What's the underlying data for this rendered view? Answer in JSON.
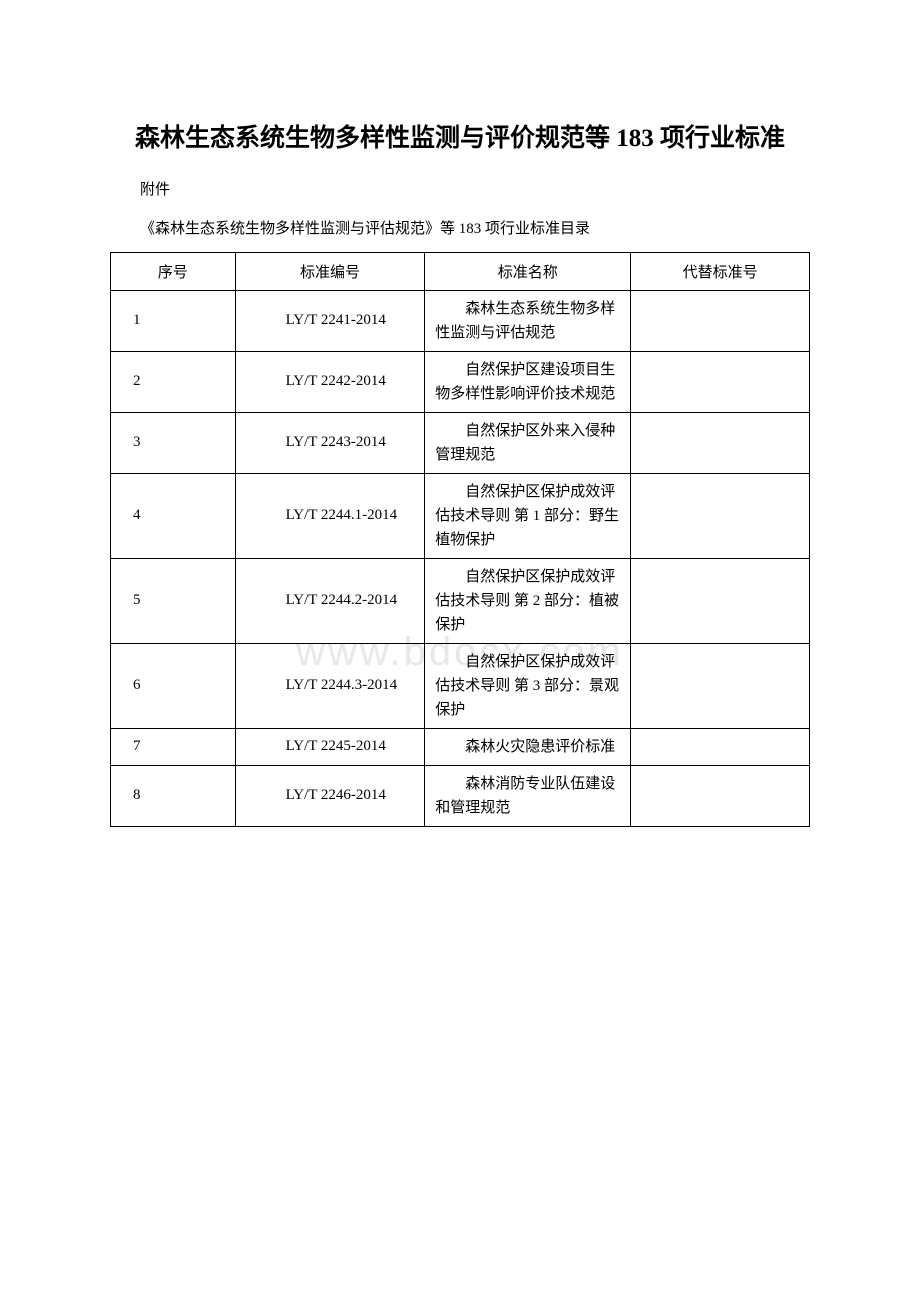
{
  "title": "森林生态系统生物多样性监测与评价规范等 183 项行业标准",
  "attachment": "附件",
  "subtitle": "《森林生态系统生物多样性监测与评估规范》等 183 项行业标准目录",
  "watermark": "www.bdocx.com",
  "table": {
    "headers": {
      "seq": "序号",
      "code": "标准编号",
      "name": "标准名称",
      "replace": "代替标准号"
    },
    "rows": [
      {
        "seq": "1",
        "code": "LY/T 2241-2014",
        "name": "森林生态系统生物多样性监测与评估规范",
        "replace": ""
      },
      {
        "seq": "2",
        "code": "LY/T 2242-2014",
        "name": "自然保护区建设项目生物多样性影响评价技术规范",
        "replace": ""
      },
      {
        "seq": "3",
        "code": "LY/T 2243-2014",
        "name": "自然保护区外来入侵种管理规范",
        "replace": ""
      },
      {
        "seq": "4",
        "code": "LY/T 2244.1-2014",
        "name": "自然保护区保护成效评估技术导则 第 1 部分：野生植物保护",
        "replace": ""
      },
      {
        "seq": "5",
        "code": "LY/T 2244.2-2014",
        "name": "自然保护区保护成效评估技术导则 第 2 部分：植被保护",
        "replace": ""
      },
      {
        "seq": "6",
        "code": "LY/T 2244.3-2014",
        "name": "自然保护区保护成效评估技术导则 第 3 部分：景观保护",
        "replace": ""
      },
      {
        "seq": "7",
        "code": "LY/T 2245-2014",
        "name": "森林火灾隐患评价标准",
        "replace": ""
      },
      {
        "seq": "8",
        "code": "LY/T 2246-2014",
        "name": "森林消防专业队伍建设和管理规范",
        "replace": ""
      }
    ]
  }
}
